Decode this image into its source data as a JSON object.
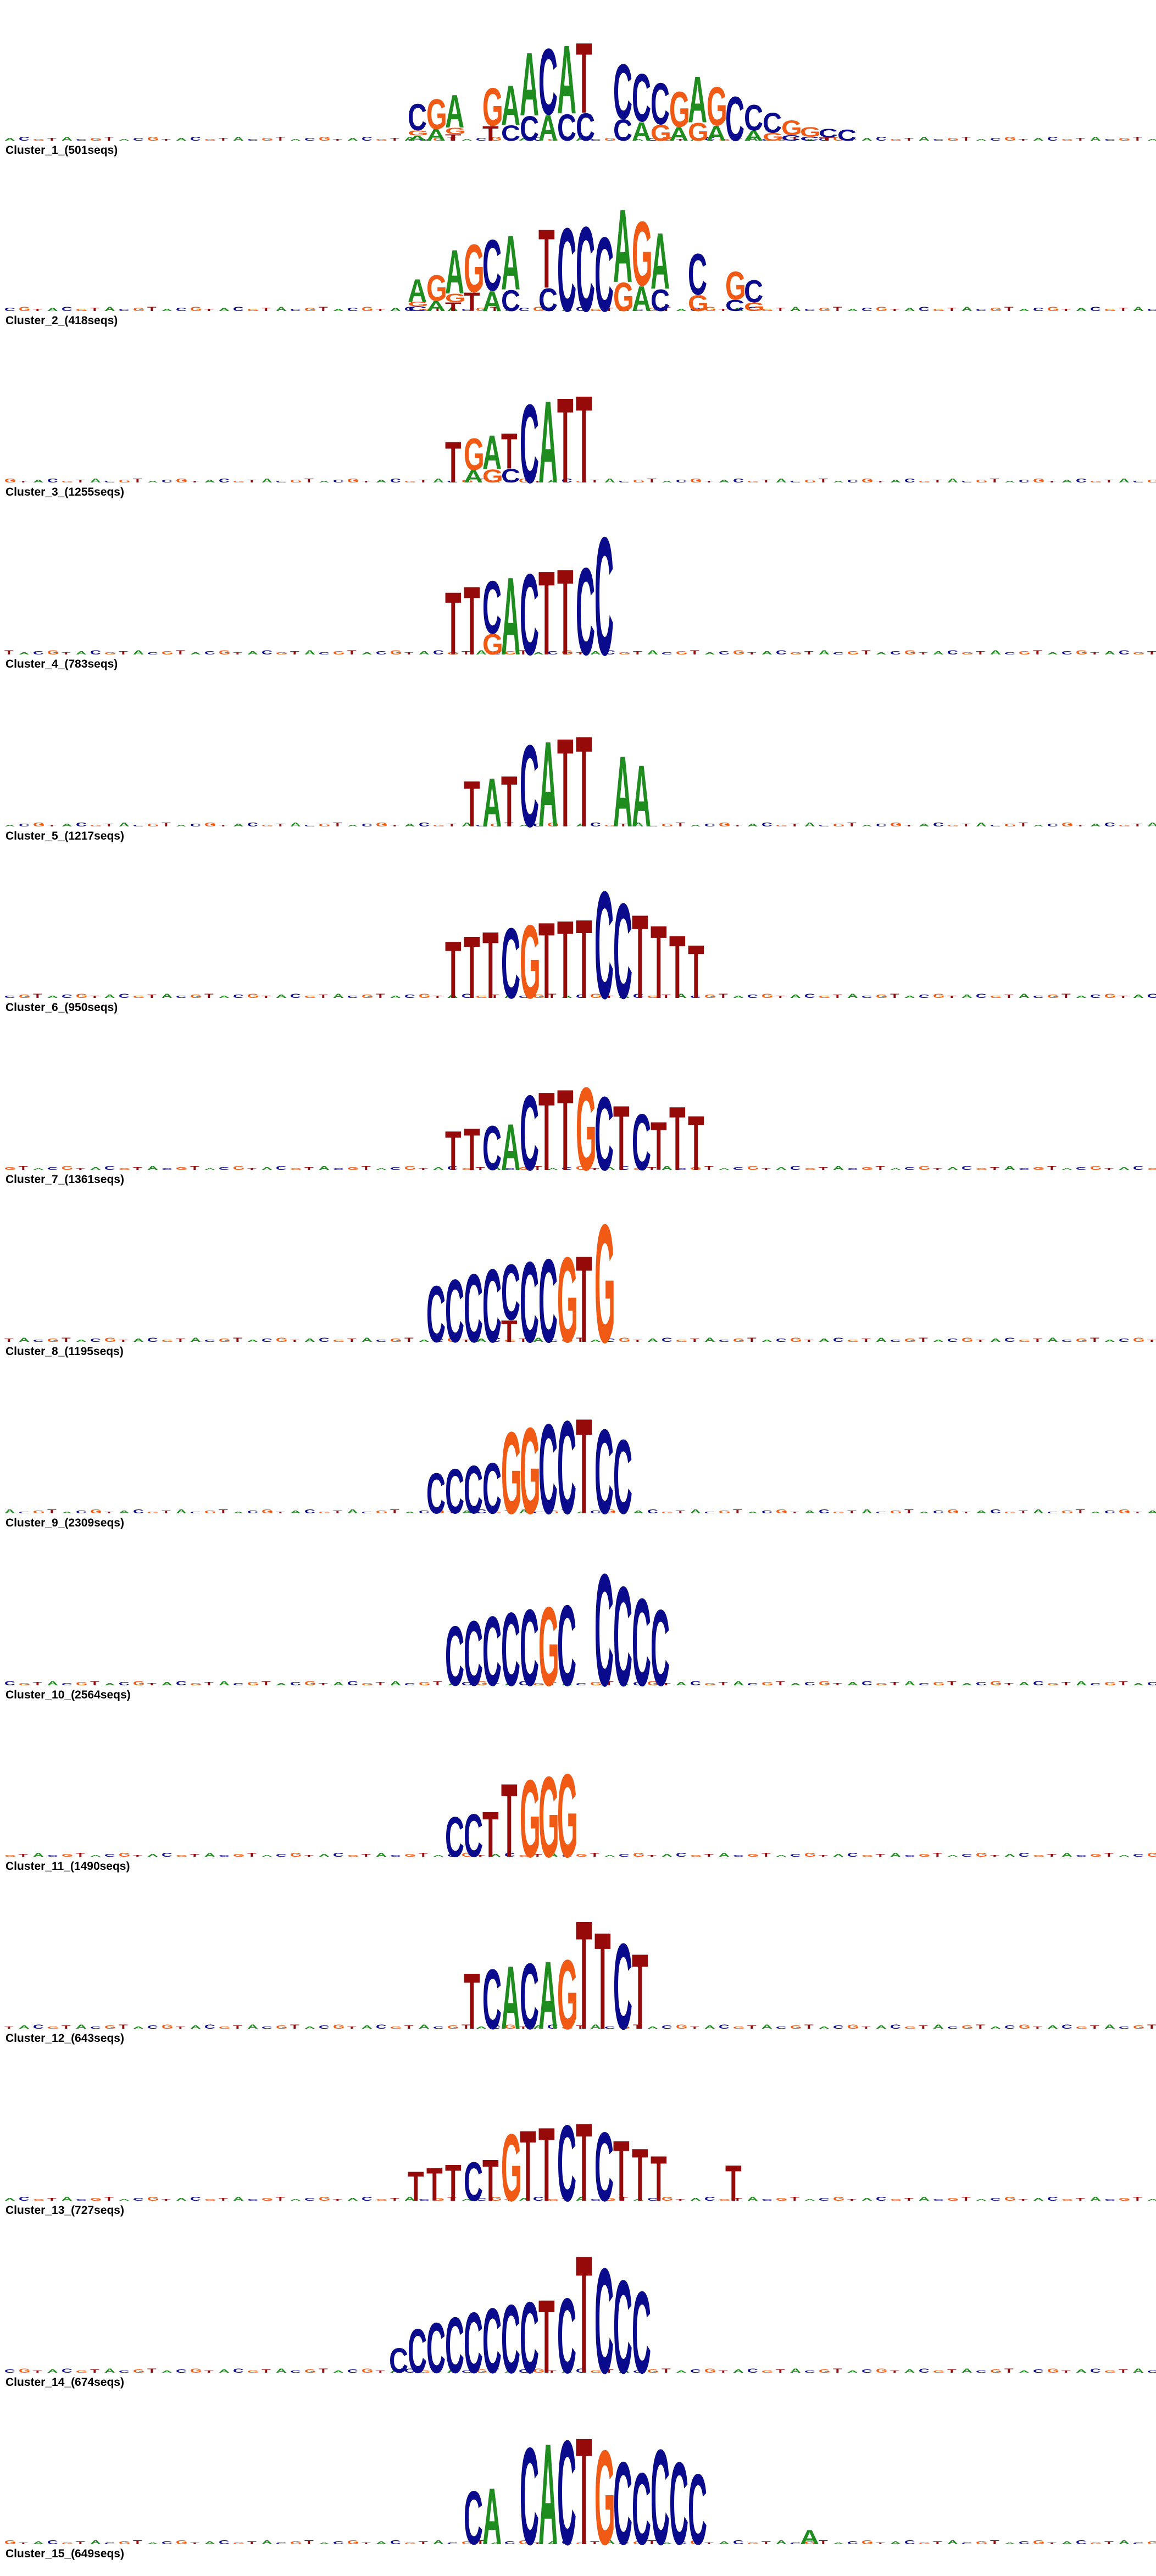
{
  "colors": {
    "A": "#1e8c1e",
    "C": "#0a0a8c",
    "G": "#f05a14",
    "T": "#960a0a"
  },
  "clusters": [
    {
      "label": "Cluster_1_(501seqs)",
      "peaks": [
        {
          "pos": 3,
          "stack": [
            "C",
            "G",
            "A"
          ]
        },
        {
          "pos": 4,
          "stack": [
            "G",
            "A"
          ]
        },
        {
          "pos": 5,
          "stack": [
            "A",
            "G",
            "T"
          ]
        },
        {
          "pos": 7,
          "stack": [
            "G",
            "T"
          ]
        },
        {
          "pos": 8,
          "stack": [
            "A",
            "C"
          ]
        },
        {
          "pos": 9,
          "stack": [
            "A",
            "C"
          ]
        },
        {
          "pos": 10,
          "stack": [
            "C",
            "A"
          ]
        },
        {
          "pos": 11,
          "stack": [
            "A",
            "C"
          ]
        },
        {
          "pos": 12,
          "stack": [
            "T",
            "C"
          ]
        },
        {
          "pos": 14,
          "stack": [
            "C",
            "C"
          ]
        },
        {
          "pos": 15,
          "stack": [
            "C",
            "A"
          ]
        },
        {
          "pos": 16,
          "stack": [
            "C",
            "G"
          ]
        },
        {
          "pos": 17,
          "stack": [
            "G",
            "A"
          ]
        },
        {
          "pos": 18,
          "stack": [
            "A",
            "G"
          ]
        },
        {
          "pos": 19,
          "stack": [
            "G",
            "A"
          ]
        },
        {
          "pos": 20,
          "stack": [
            "C"
          ]
        },
        {
          "pos": 21,
          "stack": [
            "C",
            "A"
          ]
        },
        {
          "pos": 22,
          "stack": [
            "C",
            "G"
          ]
        },
        {
          "pos": 23,
          "stack": [
            "G",
            "C"
          ]
        },
        {
          "pos": 24,
          "stack": [
            "G",
            "C"
          ]
        },
        {
          "pos": 25,
          "stack": [
            "C",
            "T"
          ]
        },
        {
          "pos": 26,
          "stack": [
            "C"
          ]
        }
      ]
    },
    {
      "label": "Cluster_2_(418seqs)",
      "peaks": [
        {
          "pos": 3,
          "stack": [
            "A",
            "G",
            "C"
          ]
        },
        {
          "pos": 4,
          "stack": [
            "G",
            "A"
          ]
        },
        {
          "pos": 5,
          "stack": [
            "A",
            "G",
            "T"
          ]
        },
        {
          "pos": 6,
          "stack": [
            "G",
            "T"
          ]
        },
        {
          "pos": 7,
          "stack": [
            "C",
            "A"
          ]
        },
        {
          "pos": 8,
          "stack": [
            "A",
            "C"
          ]
        },
        {
          "pos": 10,
          "stack": [
            "T",
            "C"
          ]
        },
        {
          "pos": 11,
          "stack": [
            "C"
          ]
        },
        {
          "pos": 12,
          "stack": [
            "C"
          ]
        },
        {
          "pos": 13,
          "stack": [
            "C"
          ]
        },
        {
          "pos": 14,
          "stack": [
            "A",
            "G"
          ]
        },
        {
          "pos": 15,
          "stack": [
            "G",
            "A"
          ]
        },
        {
          "pos": 16,
          "stack": [
            "A",
            "C"
          ]
        },
        {
          "pos": 18,
          "stack": [
            "C",
            "G"
          ]
        },
        {
          "pos": 20,
          "stack": [
            "G",
            "C"
          ]
        },
        {
          "pos": 21,
          "stack": [
            "C",
            "G"
          ]
        }
      ]
    },
    {
      "label": "Cluster_3_(1255seqs)",
      "peaks": [
        {
          "pos": 5,
          "stack": [
            "T"
          ]
        },
        {
          "pos": 6,
          "stack": [
            "G",
            "A"
          ]
        },
        {
          "pos": 7,
          "stack": [
            "A",
            "G"
          ]
        },
        {
          "pos": 8,
          "stack": [
            "T",
            "C"
          ]
        },
        {
          "pos": 9,
          "stack": [
            "C"
          ]
        },
        {
          "pos": 10,
          "stack": [
            "A"
          ]
        },
        {
          "pos": 11,
          "stack": [
            "T"
          ]
        },
        {
          "pos": 12,
          "stack": [
            "T"
          ]
        }
      ]
    },
    {
      "label": "Cluster_4_(783seqs)",
      "peaks": [
        {
          "pos": 5,
          "stack": [
            "T"
          ]
        },
        {
          "pos": 6,
          "stack": [
            "T"
          ]
        },
        {
          "pos": 7,
          "stack": [
            "C",
            "G"
          ]
        },
        {
          "pos": 8,
          "stack": [
            "A"
          ]
        },
        {
          "pos": 9,
          "stack": [
            "C"
          ]
        },
        {
          "pos": 10,
          "stack": [
            "T"
          ]
        },
        {
          "pos": 11,
          "stack": [
            "T"
          ]
        },
        {
          "pos": 12,
          "stack": [
            "C"
          ]
        },
        {
          "pos": 13,
          "stack": [
            "C"
          ]
        }
      ]
    },
    {
      "label": "Cluster_5_(1217seqs)",
      "peaks": [
        {
          "pos": 6,
          "stack": [
            "T"
          ]
        },
        {
          "pos": 7,
          "stack": [
            "A"
          ]
        },
        {
          "pos": 8,
          "stack": [
            "T"
          ]
        },
        {
          "pos": 9,
          "stack": [
            "C"
          ]
        },
        {
          "pos": 10,
          "stack": [
            "A"
          ]
        },
        {
          "pos": 11,
          "stack": [
            "T"
          ]
        },
        {
          "pos": 12,
          "stack": [
            "T"
          ]
        },
        {
          "pos": 14,
          "stack": [
            "A"
          ]
        },
        {
          "pos": 15,
          "stack": [
            "A"
          ]
        }
      ]
    },
    {
      "label": "Cluster_6_(950seqs)",
      "peaks": [
        {
          "pos": 5,
          "stack": [
            "T"
          ]
        },
        {
          "pos": 6,
          "stack": [
            "T"
          ]
        },
        {
          "pos": 7,
          "stack": [
            "T"
          ]
        },
        {
          "pos": 8,
          "stack": [
            "C"
          ]
        },
        {
          "pos": 9,
          "stack": [
            "G"
          ]
        },
        {
          "pos": 10,
          "stack": [
            "T"
          ]
        },
        {
          "pos": 11,
          "stack": [
            "T"
          ]
        },
        {
          "pos": 12,
          "stack": [
            "T"
          ]
        },
        {
          "pos": 13,
          "stack": [
            "C"
          ]
        },
        {
          "pos": 14,
          "stack": [
            "C"
          ]
        },
        {
          "pos": 15,
          "stack": [
            "T"
          ]
        },
        {
          "pos": 16,
          "stack": [
            "T"
          ]
        },
        {
          "pos": 17,
          "stack": [
            "T"
          ]
        },
        {
          "pos": 18,
          "stack": [
            "T"
          ]
        }
      ]
    },
    {
      "label": "Cluster_7_(1361seqs)",
      "peaks": [
        {
          "pos": 5,
          "stack": [
            "T"
          ]
        },
        {
          "pos": 6,
          "stack": [
            "T"
          ]
        },
        {
          "pos": 7,
          "stack": [
            "C"
          ]
        },
        {
          "pos": 8,
          "stack": [
            "A"
          ]
        },
        {
          "pos": 9,
          "stack": [
            "C"
          ]
        },
        {
          "pos": 10,
          "stack": [
            "T"
          ]
        },
        {
          "pos": 11,
          "stack": [
            "T"
          ]
        },
        {
          "pos": 12,
          "stack": [
            "G"
          ]
        },
        {
          "pos": 13,
          "stack": [
            "C"
          ]
        },
        {
          "pos": 14,
          "stack": [
            "T"
          ]
        },
        {
          "pos": 15,
          "stack": [
            "C"
          ]
        },
        {
          "pos": 16,
          "stack": [
            "T"
          ]
        },
        {
          "pos": 17,
          "stack": [
            "T"
          ]
        },
        {
          "pos": 18,
          "stack": [
            "T"
          ]
        }
      ]
    },
    {
      "label": "Cluster_8_(1195seqs)",
      "peaks": [
        {
          "pos": 4,
          "stack": [
            "C"
          ]
        },
        {
          "pos": 5,
          "stack": [
            "C"
          ]
        },
        {
          "pos": 6,
          "stack": [
            "C"
          ]
        },
        {
          "pos": 7,
          "stack": [
            "C"
          ]
        },
        {
          "pos": 8,
          "stack": [
            "C",
            "T"
          ]
        },
        {
          "pos": 9,
          "stack": [
            "C"
          ]
        },
        {
          "pos": 10,
          "stack": [
            "C"
          ]
        },
        {
          "pos": 11,
          "stack": [
            "G"
          ]
        },
        {
          "pos": 12,
          "stack": [
            "T"
          ]
        },
        {
          "pos": 13,
          "stack": [
            "G"
          ]
        }
      ]
    },
    {
      "label": "Cluster_9_(2309seqs)",
      "peaks": [
        {
          "pos": 4,
          "stack": [
            "C"
          ]
        },
        {
          "pos": 5,
          "stack": [
            "C"
          ]
        },
        {
          "pos": 6,
          "stack": [
            "C"
          ]
        },
        {
          "pos": 7,
          "stack": [
            "C"
          ]
        },
        {
          "pos": 8,
          "stack": [
            "G"
          ]
        },
        {
          "pos": 9,
          "stack": [
            "G"
          ]
        },
        {
          "pos": 10,
          "stack": [
            "C"
          ]
        },
        {
          "pos": 11,
          "stack": [
            "C"
          ]
        },
        {
          "pos": 12,
          "stack": [
            "T"
          ]
        },
        {
          "pos": 13,
          "stack": [
            "C"
          ]
        },
        {
          "pos": 14,
          "stack": [
            "C"
          ]
        }
      ]
    },
    {
      "label": "Cluster_10_(2564seqs)",
      "peaks": [
        {
          "pos": 5,
          "stack": [
            "C"
          ]
        },
        {
          "pos": 6,
          "stack": [
            "C"
          ]
        },
        {
          "pos": 7,
          "stack": [
            "C"
          ]
        },
        {
          "pos": 8,
          "stack": [
            "C"
          ]
        },
        {
          "pos": 9,
          "stack": [
            "C"
          ]
        },
        {
          "pos": 10,
          "stack": [
            "G"
          ]
        },
        {
          "pos": 11,
          "stack": [
            "C"
          ]
        },
        {
          "pos": 13,
          "stack": [
            "C"
          ]
        },
        {
          "pos": 14,
          "stack": [
            "C"
          ]
        },
        {
          "pos": 15,
          "stack": [
            "C"
          ]
        },
        {
          "pos": 16,
          "stack": [
            "C"
          ]
        }
      ]
    },
    {
      "label": "Cluster_11_(1490seqs)",
      "peaks": [
        {
          "pos": 5,
          "stack": [
            "C"
          ]
        },
        {
          "pos": 6,
          "stack": [
            "C"
          ]
        },
        {
          "pos": 7,
          "stack": [
            "T"
          ]
        },
        {
          "pos": 8,
          "stack": [
            "T"
          ]
        },
        {
          "pos": 9,
          "stack": [
            "G"
          ]
        },
        {
          "pos": 10,
          "stack": [
            "G"
          ]
        },
        {
          "pos": 11,
          "stack": [
            "G"
          ]
        }
      ]
    },
    {
      "label": "Cluster_12_(643seqs)",
      "peaks": [
        {
          "pos": 6,
          "stack": [
            "T"
          ]
        },
        {
          "pos": 7,
          "stack": [
            "C"
          ]
        },
        {
          "pos": 8,
          "stack": [
            "A"
          ]
        },
        {
          "pos": 9,
          "stack": [
            "C"
          ]
        },
        {
          "pos": 10,
          "stack": [
            "A"
          ]
        },
        {
          "pos": 11,
          "stack": [
            "G"
          ]
        },
        {
          "pos": 12,
          "stack": [
            "T"
          ]
        },
        {
          "pos": 13,
          "stack": [
            "T"
          ]
        },
        {
          "pos": 14,
          "stack": [
            "C"
          ]
        },
        {
          "pos": 15,
          "stack": [
            "T"
          ]
        }
      ]
    },
    {
      "label": "Cluster_13_(727seqs)",
      "peaks": [
        {
          "pos": 3,
          "stack": [
            "T"
          ]
        },
        {
          "pos": 4,
          "stack": [
            "T"
          ]
        },
        {
          "pos": 5,
          "stack": [
            "T"
          ]
        },
        {
          "pos": 6,
          "stack": [
            "C"
          ]
        },
        {
          "pos": 7,
          "stack": [
            "T"
          ]
        },
        {
          "pos": 8,
          "stack": [
            "G"
          ]
        },
        {
          "pos": 9,
          "stack": [
            "T"
          ]
        },
        {
          "pos": 10,
          "stack": [
            "T"
          ]
        },
        {
          "pos": 11,
          "stack": [
            "C"
          ]
        },
        {
          "pos": 12,
          "stack": [
            "T"
          ]
        },
        {
          "pos": 13,
          "stack": [
            "C"
          ]
        },
        {
          "pos": 14,
          "stack": [
            "T"
          ]
        },
        {
          "pos": 15,
          "stack": [
            "T"
          ]
        },
        {
          "pos": 16,
          "stack": [
            "T"
          ]
        },
        {
          "pos": 20,
          "stack": [
            "T"
          ]
        }
      ]
    },
    {
      "label": "Cluster_14_(674seqs)",
      "peaks": [
        {
          "pos": 2,
          "stack": [
            "C"
          ]
        },
        {
          "pos": 3,
          "stack": [
            "C"
          ]
        },
        {
          "pos": 4,
          "stack": [
            "C"
          ]
        },
        {
          "pos": 5,
          "stack": [
            "C"
          ]
        },
        {
          "pos": 6,
          "stack": [
            "C"
          ]
        },
        {
          "pos": 7,
          "stack": [
            "C"
          ]
        },
        {
          "pos": 8,
          "stack": [
            "C"
          ]
        },
        {
          "pos": 9,
          "stack": [
            "C"
          ]
        },
        {
          "pos": 10,
          "stack": [
            "T"
          ]
        },
        {
          "pos": 11,
          "stack": [
            "C"
          ]
        },
        {
          "pos": 12,
          "stack": [
            "T"
          ]
        },
        {
          "pos": 13,
          "stack": [
            "C"
          ]
        },
        {
          "pos": 14,
          "stack": [
            "C"
          ]
        },
        {
          "pos": 15,
          "stack": [
            "C"
          ]
        }
      ]
    },
    {
      "label": "Cluster_15_(649seqs)",
      "peaks": [
        {
          "pos": 6,
          "stack": [
            "C"
          ]
        },
        {
          "pos": 7,
          "stack": [
            "A"
          ]
        },
        {
          "pos": 9,
          "stack": [
            "C"
          ]
        },
        {
          "pos": 10,
          "stack": [
            "A"
          ]
        },
        {
          "pos": 11,
          "stack": [
            "C"
          ]
        },
        {
          "pos": 12,
          "stack": [
            "T"
          ]
        },
        {
          "pos": 13,
          "stack": [
            "G"
          ]
        },
        {
          "pos": 14,
          "stack": [
            "C"
          ]
        },
        {
          "pos": 15,
          "stack": [
            "C"
          ]
        },
        {
          "pos": 16,
          "stack": [
            "C"
          ]
        },
        {
          "pos": 17,
          "stack": [
            "C"
          ]
        },
        {
          "pos": 18,
          "stack": [
            "C"
          ]
        },
        {
          "pos": 24,
          "stack": [
            "A"
          ]
        }
      ]
    }
  ]
}
